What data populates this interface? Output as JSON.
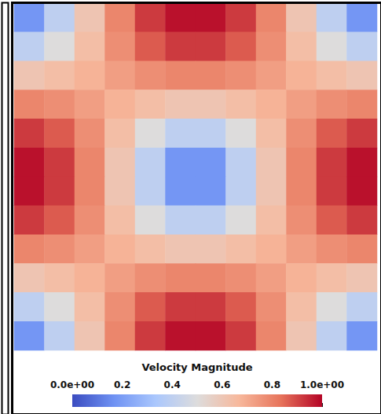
{
  "chart_data": {
    "type": "heatmap",
    "colorbar_title": "Velocity Magnitude",
    "cells": [
      [
        0.18,
        0.4,
        0.61,
        0.79,
        0.92,
        0.98,
        0.98,
        0.92,
        0.79,
        0.61,
        0.4,
        0.18
      ],
      [
        0.4,
        0.5,
        0.64,
        0.77,
        0.87,
        0.92,
        0.92,
        0.87,
        0.77,
        0.64,
        0.5,
        0.4
      ],
      [
        0.61,
        0.64,
        0.68,
        0.73,
        0.77,
        0.79,
        0.79,
        0.77,
        0.73,
        0.68,
        0.64,
        0.61
      ],
      [
        0.79,
        0.77,
        0.73,
        0.68,
        0.64,
        0.61,
        0.61,
        0.64,
        0.68,
        0.73,
        0.77,
        0.79
      ],
      [
        0.92,
        0.87,
        0.77,
        0.64,
        0.5,
        0.4,
        0.4,
        0.5,
        0.64,
        0.77,
        0.87,
        0.92
      ],
      [
        0.98,
        0.92,
        0.79,
        0.61,
        0.4,
        0.18,
        0.18,
        0.4,
        0.61,
        0.79,
        0.92,
        0.98
      ],
      [
        0.98,
        0.92,
        0.79,
        0.61,
        0.4,
        0.18,
        0.18,
        0.4,
        0.61,
        0.79,
        0.92,
        0.98
      ],
      [
        0.92,
        0.87,
        0.77,
        0.64,
        0.5,
        0.4,
        0.4,
        0.5,
        0.64,
        0.77,
        0.87,
        0.92
      ],
      [
        0.79,
        0.77,
        0.73,
        0.68,
        0.64,
        0.61,
        0.61,
        0.64,
        0.68,
        0.73,
        0.77,
        0.79
      ],
      [
        0.61,
        0.64,
        0.68,
        0.73,
        0.77,
        0.79,
        0.79,
        0.77,
        0.73,
        0.68,
        0.64,
        0.61
      ],
      [
        0.4,
        0.5,
        0.64,
        0.77,
        0.87,
        0.92,
        0.92,
        0.87,
        0.77,
        0.64,
        0.5,
        0.4
      ],
      [
        0.18,
        0.4,
        0.61,
        0.79,
        0.92,
        0.98,
        0.98,
        0.92,
        0.79,
        0.61,
        0.4,
        0.18
      ]
    ],
    "colorbar_range": [
      0,
      1
    ],
    "colorbar_ticks": [
      {
        "value": 0,
        "label": "0.0e+00"
      },
      0.2,
      0.4,
      0.6,
      0.8,
      {
        "value": 1,
        "label": "1.0e+00"
      }
    ],
    "tick_labels": false
  }
}
